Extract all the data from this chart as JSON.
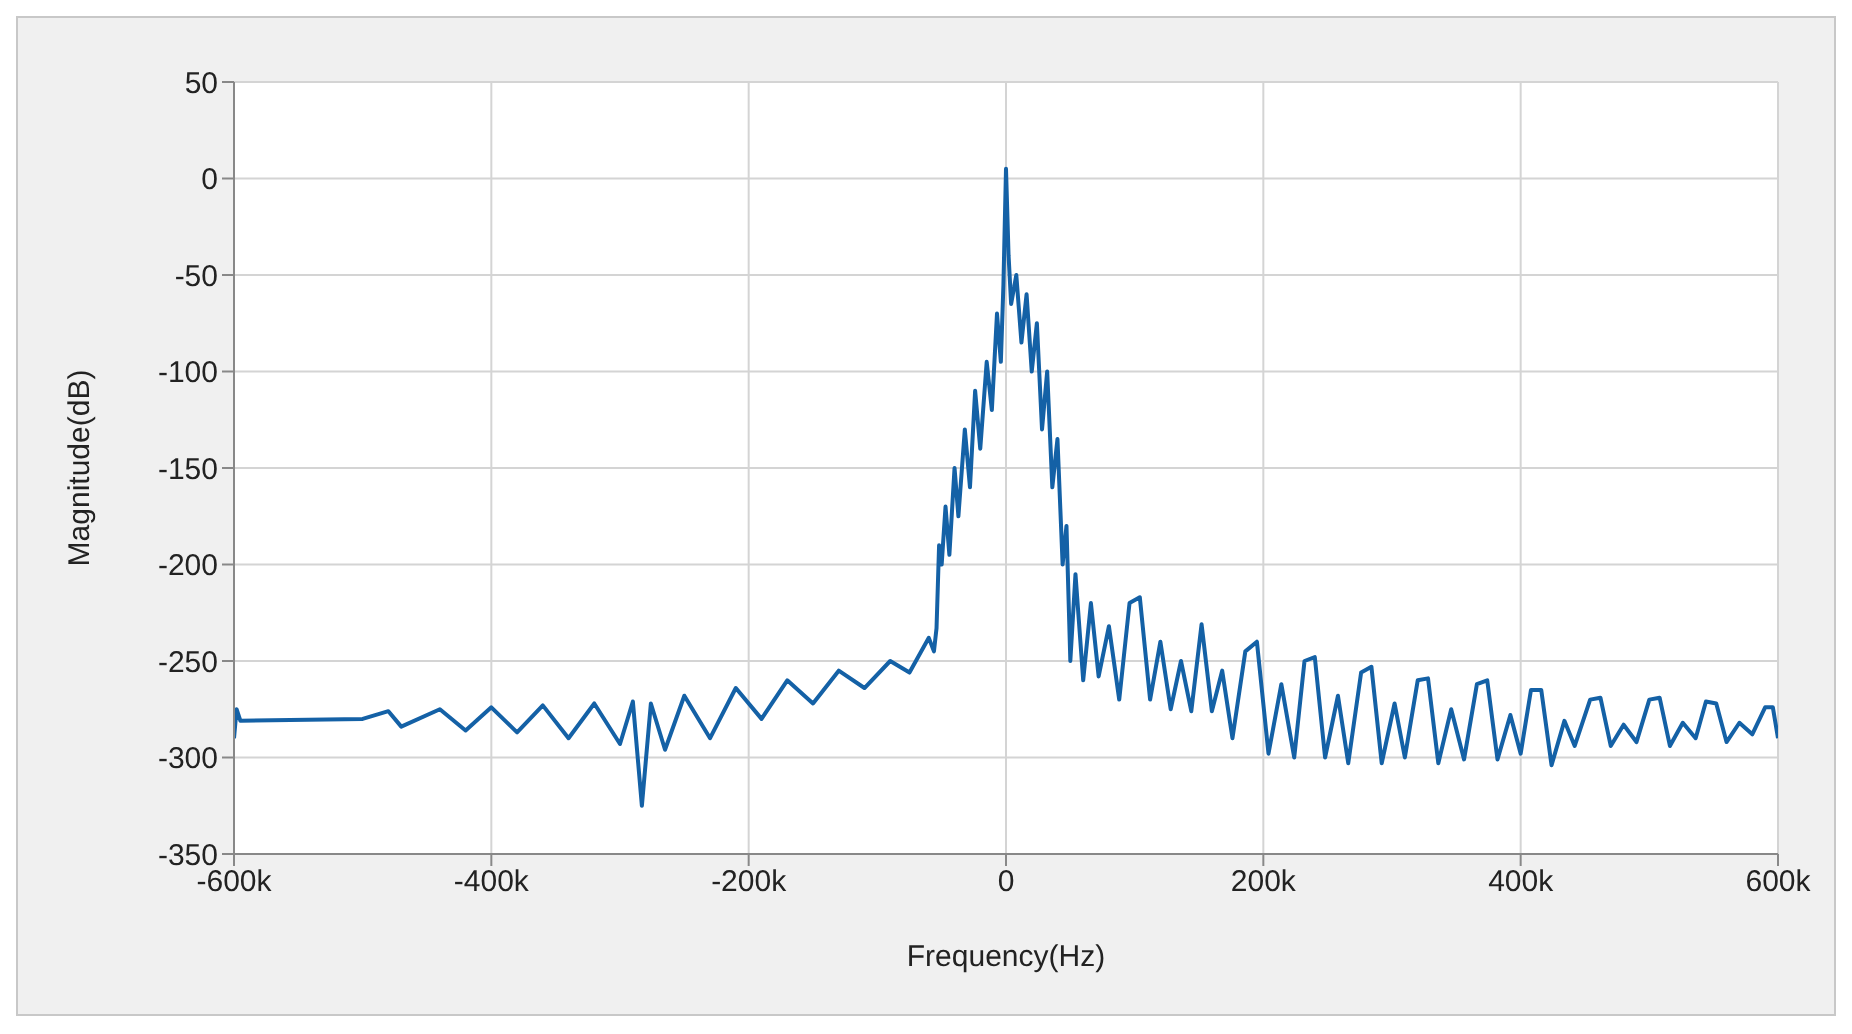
{
  "chart_data": {
    "type": "line",
    "xlabel": "Frequency(Hz)",
    "ylabel": "Magnitude(dB)",
    "xlim": [
      -600000,
      600000
    ],
    "xticks": [
      {
        "value": -600000,
        "label": "-600k"
      },
      {
        "value": -400000,
        "label": "-400k"
      },
      {
        "value": -200000,
        "label": "-200k"
      },
      0,
      {
        "value": 200000,
        "label": "200k"
      },
      {
        "value": 400000,
        "label": "400k"
      },
      {
        "value": 600000,
        "label": "600k"
      }
    ],
    "ylim": [
      -350,
      50
    ],
    "yticks": [
      -350,
      -300,
      -250,
      -200,
      -150,
      -100,
      -50,
      0,
      50
    ],
    "grid": true,
    "marker": "none",
    "line_style": "solid",
    "x": [
      -600000,
      -598000,
      -595000,
      -500000,
      -480000,
      -470000,
      -440000,
      -420000,
      -400000,
      -380000,
      -360000,
      -340000,
      -320000,
      -300000,
      -290000,
      -283000,
      -276000,
      -265000,
      -250000,
      -230000,
      -210000,
      -190000,
      -170000,
      -150000,
      -130000,
      -110000,
      -90000,
      -75000,
      -60000,
      -56000,
      -54000,
      -52000,
      -50000,
      -47000,
      -44000,
      -40000,
      -37000,
      -32000,
      -28000,
      -24000,
      -20000,
      -15000,
      -11000,
      -7000,
      -4000,
      -2000,
      0,
      2000,
      4000,
      8000,
      12000,
      16000,
      20000,
      24000,
      28000,
      32000,
      36000,
      40000,
      44000,
      47000,
      50000,
      54000,
      60000,
      66000,
      72000,
      80000,
      88000,
      96000,
      104000,
      112000,
      120000,
      128000,
      136000,
      144000,
      152000,
      160000,
      168000,
      176000,
      186000,
      195000,
      204000,
      214000,
      224000,
      232000,
      240000,
      248000,
      258000,
      266000,
      276000,
      284000,
      292000,
      302000,
      310000,
      320000,
      328000,
      336000,
      346000,
      356000,
      366000,
      374000,
      382000,
      392000,
      400000,
      408000,
      416000,
      424000,
      434000,
      442000,
      454000,
      462000,
      470000,
      480000,
      490000,
      500000,
      508000,
      516000,
      526000,
      536000,
      544000,
      552000,
      560000,
      570000,
      580000,
      590000,
      596000,
      600000
    ],
    "series": [
      {
        "color": "#1461a6",
        "values": [
          -290,
          -275,
          -281,
          -280,
          -276,
          -284,
          -275,
          -286,
          -274,
          -287,
          -273,
          -290,
          -272,
          -293,
          -271,
          -325,
          -272,
          -296,
          -268,
          -290,
          -264,
          -280,
          -260,
          -272,
          -255,
          -264,
          -250,
          -256,
          -238,
          -245,
          -233,
          -190,
          -200,
          -170,
          -195,
          -150,
          -175,
          -130,
          -160,
          -110,
          -140,
          -95,
          -120,
          -70,
          -95,
          -55,
          5,
          -40,
          -65,
          -50,
          -85,
          -60,
          -100,
          -75,
          -130,
          -100,
          -160,
          -135,
          -200,
          -180,
          -250,
          -205,
          -260,
          -220,
          -258,
          -232,
          -270,
          -220,
          -217,
          -270,
          -240,
          -275,
          -250,
          -276,
          -231,
          -276,
          -255,
          -290,
          -245,
          -240,
          -298,
          -262,
          -300,
          -250,
          -248,
          -300,
          -268,
          -303,
          -256,
          -253,
          -303,
          -272,
          -300,
          -260,
          -259,
          -303,
          -275,
          -301,
          -262,
          -260,
          -301,
          -278,
          -298,
          -265,
          -265,
          -304,
          -281,
          -294,
          -270,
          -269,
          -294,
          -283,
          -292,
          -270,
          -269,
          -294,
          -282,
          -290,
          -271,
          -272,
          -292,
          -282,
          -288,
          -274,
          -274,
          -290
        ]
      }
    ]
  }
}
